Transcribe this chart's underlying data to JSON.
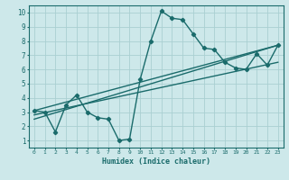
{
  "xlabel": "Humidex (Indice chaleur)",
  "xlim": [
    -0.5,
    23.5
  ],
  "ylim": [
    0.5,
    10.5
  ],
  "xticks": [
    0,
    1,
    2,
    3,
    4,
    5,
    6,
    7,
    8,
    9,
    10,
    11,
    12,
    13,
    14,
    15,
    16,
    17,
    18,
    19,
    20,
    21,
    22,
    23
  ],
  "yticks": [
    1,
    2,
    3,
    4,
    5,
    6,
    7,
    8,
    9,
    10
  ],
  "bg_color": "#cde8ea",
  "grid_color": "#aacfd2",
  "line_color": "#1a6b6b",
  "line_width": 1.0,
  "marker": "D",
  "marker_size": 2.2,
  "main_series": {
    "x": [
      0,
      1,
      2,
      3,
      4,
      5,
      6,
      7,
      8,
      9,
      10,
      11,
      12,
      13,
      14,
      15,
      16,
      17,
      18,
      19,
      20,
      21,
      22,
      23
    ],
    "y": [
      3.1,
      3.0,
      1.6,
      3.5,
      4.2,
      3.0,
      2.6,
      2.5,
      1.0,
      1.1,
      5.3,
      8.0,
      10.1,
      9.6,
      9.5,
      8.5,
      7.5,
      7.4,
      6.5,
      6.1,
      6.0,
      7.1,
      6.3,
      7.7
    ]
  },
  "trend_lines": [
    {
      "x": [
        0,
        23
      ],
      "y": [
        3.1,
        7.7
      ]
    },
    {
      "x": [
        0,
        23
      ],
      "y": [
        2.8,
        6.5
      ]
    },
    {
      "x": [
        0,
        23
      ],
      "y": [
        2.5,
        7.7
      ]
    }
  ]
}
